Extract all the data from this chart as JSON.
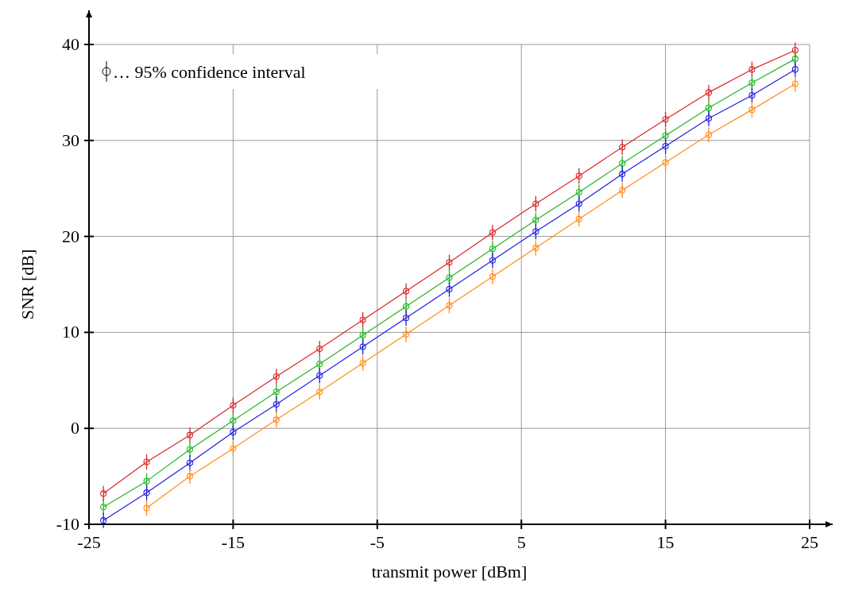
{
  "chart_data": {
    "type": "line",
    "xlabel": "transmit power [dBm]",
    "ylabel": "SNR [dB]",
    "annotations": [
      "… 95% confidence interval"
    ],
    "x": [
      -24,
      -21,
      -18,
      -15,
      -12,
      -9,
      -6,
      -3,
      0,
      3,
      6,
      9,
      12,
      15,
      18,
      21,
      24
    ],
    "xlim": [
      -25,
      25
    ],
    "xticks": [
      -25,
      -15,
      -5,
      5,
      15,
      25
    ],
    "ylim": [
      -10,
      40
    ],
    "yticks": [
      -10,
      0,
      10,
      20,
      30,
      40
    ],
    "grid": true,
    "marker": "circle",
    "line_style": "solid",
    "series": [
      {
        "color": "#d62728",
        "values": [
          -6.8,
          -3.5,
          -0.7,
          2.4,
          5.4,
          8.3,
          11.3,
          14.3,
          17.3,
          20.4,
          23.4,
          26.3,
          29.3,
          32.2,
          35.0,
          37.4,
          39.4
        ],
        "errors": [
          0.8,
          0.8,
          0.8,
          0.8,
          0.8,
          0.8,
          0.8,
          0.8,
          0.8,
          0.8,
          0.8,
          0.8,
          0.8,
          0.8,
          0.8,
          0.8,
          0.8
        ]
      },
      {
        "color": "#22b422",
        "values": [
          -8.2,
          -5.5,
          -2.2,
          0.8,
          3.8,
          6.7,
          9.7,
          12.7,
          15.7,
          18.7,
          21.7,
          24.6,
          27.6,
          30.5,
          33.4,
          36.0,
          38.5
        ],
        "errors": [
          0.8,
          0.8,
          0.8,
          0.8,
          0.8,
          0.8,
          0.8,
          0.8,
          0.8,
          0.8,
          0.8,
          0.8,
          0.8,
          0.8,
          0.8,
          0.8,
          0.8
        ]
      },
      {
        "color": "#1f1fe0",
        "values": [
          -9.6,
          -6.7,
          -3.6,
          -0.4,
          2.5,
          5.5,
          8.5,
          11.5,
          14.5,
          17.5,
          20.5,
          23.4,
          26.5,
          29.4,
          32.3,
          34.7,
          37.4
        ],
        "errors": [
          0.8,
          0.8,
          0.8,
          0.8,
          0.8,
          0.8,
          0.8,
          0.8,
          0.8,
          0.8,
          0.8,
          0.8,
          0.8,
          0.8,
          0.8,
          0.8,
          0.8
        ]
      },
      {
        "color": "#ff8c1a",
        "values": [
          null,
          -8.3,
          -5.0,
          -2.1,
          0.9,
          3.8,
          6.8,
          9.8,
          12.8,
          15.8,
          18.8,
          21.8,
          24.8,
          27.7,
          30.6,
          33.2,
          35.9
        ],
        "errors": [
          null,
          0.8,
          0.8,
          0.8,
          0.8,
          0.8,
          0.8,
          0.8,
          0.8,
          0.8,
          0.8,
          0.8,
          0.8,
          0.8,
          0.8,
          0.8,
          0.8
        ]
      }
    ]
  }
}
